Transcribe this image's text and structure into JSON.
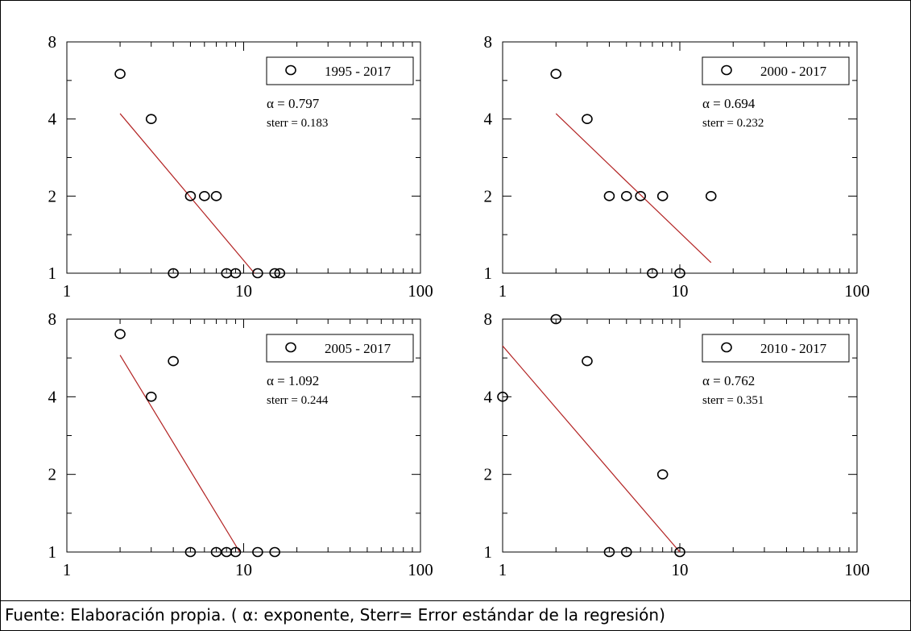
{
  "chart_data": [
    {
      "type": "scatter",
      "x_scale": "log",
      "y_scale": "log",
      "xlim": [
        1,
        100
      ],
      "ylim": [
        1,
        8
      ],
      "x_tick_labels": [
        "1",
        "10",
        "100"
      ],
      "y_tick_labels": [
        "1",
        "2",
        "4",
        "8"
      ],
      "legend_label": "1995 - 2017",
      "annotations": [
        "α = 0.797",
        "sterr = 0.183"
      ],
      "points": [
        {
          "x": 2,
          "y": 6
        },
        {
          "x": 3,
          "y": 4
        },
        {
          "x": 4,
          "y": 1
        },
        {
          "x": 5,
          "y": 2
        },
        {
          "x": 6,
          "y": 2
        },
        {
          "x": 7,
          "y": 2
        },
        {
          "x": 8,
          "y": 1
        },
        {
          "x": 9,
          "y": 1
        },
        {
          "x": 12,
          "y": 1
        },
        {
          "x": 15,
          "y": 1
        },
        {
          "x": 16,
          "y": 1
        }
      ],
      "fit_line": [
        {
          "x": 2,
          "y": 4.2
        },
        {
          "x": 11.5,
          "y": 1
        }
      ],
      "legend_placement": "top-right"
    },
    {
      "type": "scatter",
      "x_scale": "log",
      "y_scale": "log",
      "xlim": [
        1,
        100
      ],
      "ylim": [
        1,
        8
      ],
      "x_tick_labels": [
        "1",
        "10",
        "100"
      ],
      "y_tick_labels": [
        "1",
        "2",
        "4",
        "8"
      ],
      "legend_label": "2000 - 2017",
      "annotations": [
        "α = 0.694",
        "sterr = 0.232"
      ],
      "points": [
        {
          "x": 2,
          "y": 6
        },
        {
          "x": 3,
          "y": 4
        },
        {
          "x": 4,
          "y": 2
        },
        {
          "x": 5,
          "y": 2
        },
        {
          "x": 6,
          "y": 2
        },
        {
          "x": 7,
          "y": 1
        },
        {
          "x": 8,
          "y": 2
        },
        {
          "x": 10,
          "y": 1
        },
        {
          "x": 15,
          "y": 2
        }
      ],
      "fit_line": [
        {
          "x": 2,
          "y": 4.2
        },
        {
          "x": 15,
          "y": 1.1
        }
      ],
      "legend_placement": "top-right"
    },
    {
      "type": "scatter",
      "x_scale": "log",
      "y_scale": "log",
      "xlim": [
        1,
        100
      ],
      "ylim": [
        1,
        8
      ],
      "x_tick_labels": [
        "1",
        "10",
        "100"
      ],
      "y_tick_labels": [
        "1",
        "2",
        "4",
        "8"
      ],
      "legend_label": "2005 - 2017",
      "annotations": [
        "α = 1.092",
        "sterr = 0.244"
      ],
      "points": [
        {
          "x": 2,
          "y": 7
        },
        {
          "x": 3,
          "y": 4
        },
        {
          "x": 4,
          "y": 5.5
        },
        {
          "x": 5,
          "y": 1
        },
        {
          "x": 7,
          "y": 1
        },
        {
          "x": 8,
          "y": 1
        },
        {
          "x": 9,
          "y": 1
        },
        {
          "x": 12,
          "y": 1
        },
        {
          "x": 15,
          "y": 1
        }
      ],
      "fit_line": [
        {
          "x": 2,
          "y": 5.8
        },
        {
          "x": 9.5,
          "y": 1
        }
      ],
      "legend_placement": "top-right"
    },
    {
      "type": "scatter",
      "x_scale": "log",
      "y_scale": "log",
      "xlim": [
        1,
        100
      ],
      "ylim": [
        1,
        8
      ],
      "x_tick_labels": [
        "1",
        "10",
        "100"
      ],
      "y_tick_labels": [
        "1",
        "2",
        "4",
        "8"
      ],
      "legend_label": "2010 - 2017",
      "annotations": [
        "α = 0.762",
        "sterr = 0.351"
      ],
      "points": [
        {
          "x": 1,
          "y": 4
        },
        {
          "x": 2,
          "y": 8
        },
        {
          "x": 3,
          "y": 5.5
        },
        {
          "x": 4,
          "y": 1
        },
        {
          "x": 5,
          "y": 1
        },
        {
          "x": 8,
          "y": 2
        },
        {
          "x": 10,
          "y": 1
        }
      ],
      "fit_line": [
        {
          "x": 1,
          "y": 6.3
        },
        {
          "x": 10,
          "y": 1
        }
      ],
      "legend_placement": "top-right"
    }
  ],
  "caption": "Fuente: Elaboración propia. ( α: exponente, Sterr= Error estándar de la regresión)",
  "colors": {
    "fit_line": "#b22222",
    "marker": "#000000"
  }
}
